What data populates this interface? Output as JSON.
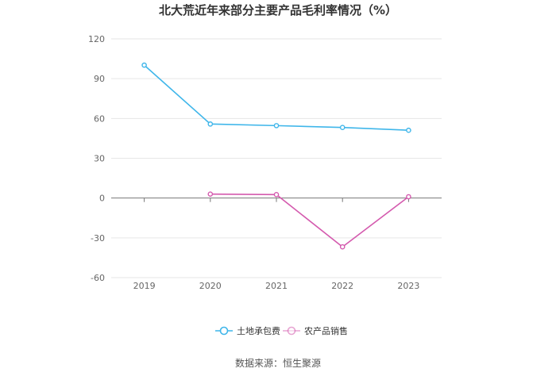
{
  "chart_data": {
    "type": "line",
    "title": "北大荒近年来部分主要产品毛利率情况（%）",
    "categories": [
      "2019",
      "2020",
      "2021",
      "2022",
      "2023"
    ],
    "ylim": [
      -60,
      120
    ],
    "yticks": [
      120,
      90,
      60,
      30,
      0,
      -30,
      -60
    ],
    "grid": true,
    "legend_position": "bottom",
    "series": [
      {
        "name": "土地承包费",
        "color": "#3fb6ea",
        "values": [
          100.2,
          55.8,
          54.6,
          53.2,
          51.1
        ]
      },
      {
        "name": "农产品销售",
        "color": "#d45aae",
        "values": [
          null,
          3.0,
          2.6,
          -36.8,
          1.0
        ]
      }
    ]
  },
  "source": "数据来源：恒生聚源"
}
